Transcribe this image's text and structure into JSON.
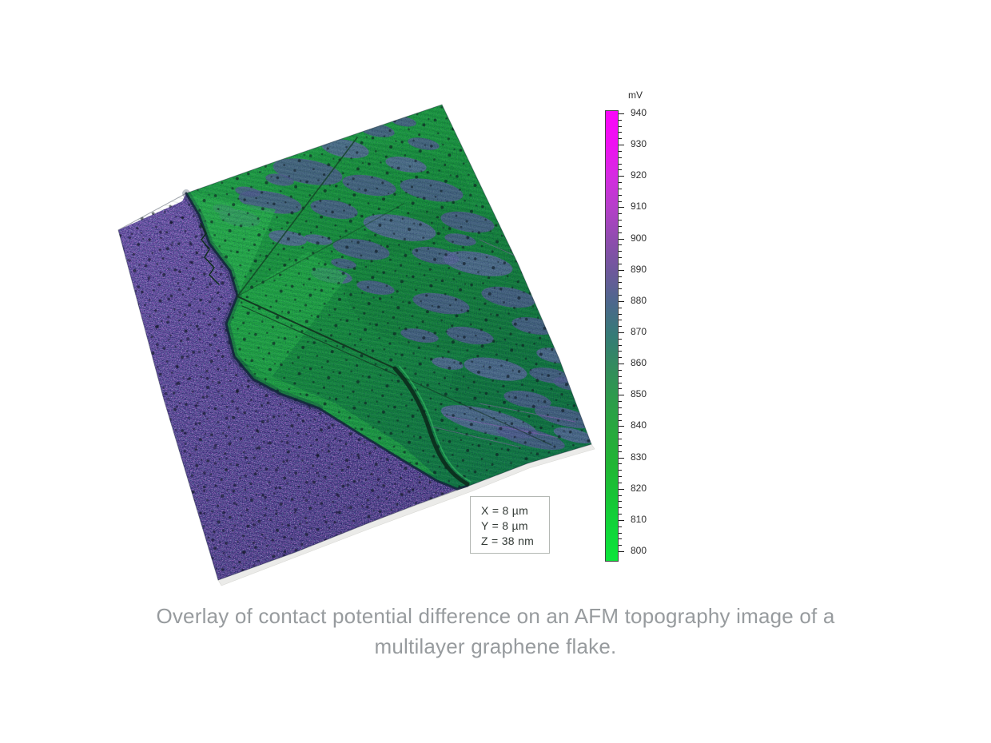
{
  "figure": {
    "scan_box": {
      "x": "X = 8 µm",
      "y": "Y = 8 µm",
      "z": "Z = 38 nm"
    },
    "colorbar": {
      "unit": "mV",
      "max": 940,
      "min": 800,
      "major_ticks": [
        940,
        930,
        920,
        910,
        900,
        890,
        880,
        870,
        860,
        850,
        840,
        830,
        820,
        810,
        800
      ],
      "minor_step": 2,
      "gradient_top_to_bottom": [
        "#fa06fa",
        "#ef10f2",
        "#d62ae2",
        "#b53fc9",
        "#8f4cae",
        "#6d589b",
        "#4c688c",
        "#357b76",
        "#338c5d",
        "#2d9c4b",
        "#28a93e",
        "#20b534",
        "#18c436",
        "#10d639",
        "#0ce53b"
      ]
    },
    "caption": {
      "line1": "Overlay of contact potential difference on an AFM topography image of a",
      "line2": "multilayer graphene flake."
    }
  },
  "chart_data": {
    "type": "heatmap",
    "title": "Overlay of contact potential difference on an AFM topography image of a multilayer graphene flake.",
    "colorbar": {
      "label": "mV",
      "range": [
        800,
        940
      ],
      "major_tick_step": 10,
      "minor_tick_step": 2,
      "ticks": [
        940,
        930,
        920,
        910,
        900,
        890,
        880,
        870,
        860,
        850,
        840,
        830,
        820,
        810,
        800
      ],
      "color_scale_top_to_bottom": [
        {
          "value_mV": 940,
          "color": "#fa06fa"
        },
        {
          "value_mV": 920,
          "color": "#d62ae2"
        },
        {
          "value_mV": 900,
          "color": "#8f4cae"
        },
        {
          "value_mV": 880,
          "color": "#4c688c"
        },
        {
          "value_mV": 870,
          "color": "#357b76"
        },
        {
          "value_mV": 850,
          "color": "#2d9c4b"
        },
        {
          "value_mV": 820,
          "color": "#18c436"
        },
        {
          "value_mV": 800,
          "color": "#0ce53b"
        }
      ]
    },
    "scan_dimensions": {
      "X": "8 µm",
      "Y": "8 µm",
      "Z": "38 nm"
    },
    "regions": [
      {
        "feature": "substrate (lower-left area)",
        "appearance": "purple with speckle and dark pits",
        "approx_cpd_mV": 900
      },
      {
        "feature": "graphene flake terraces (upper-right area)",
        "appearance": "green with scan-line texture",
        "approx_cpd_mV": 825
      },
      {
        "feature": "multilayer / adsorbate patches on flake",
        "appearance": "slate blue blobs",
        "approx_cpd_mV": 880
      }
    ]
  }
}
